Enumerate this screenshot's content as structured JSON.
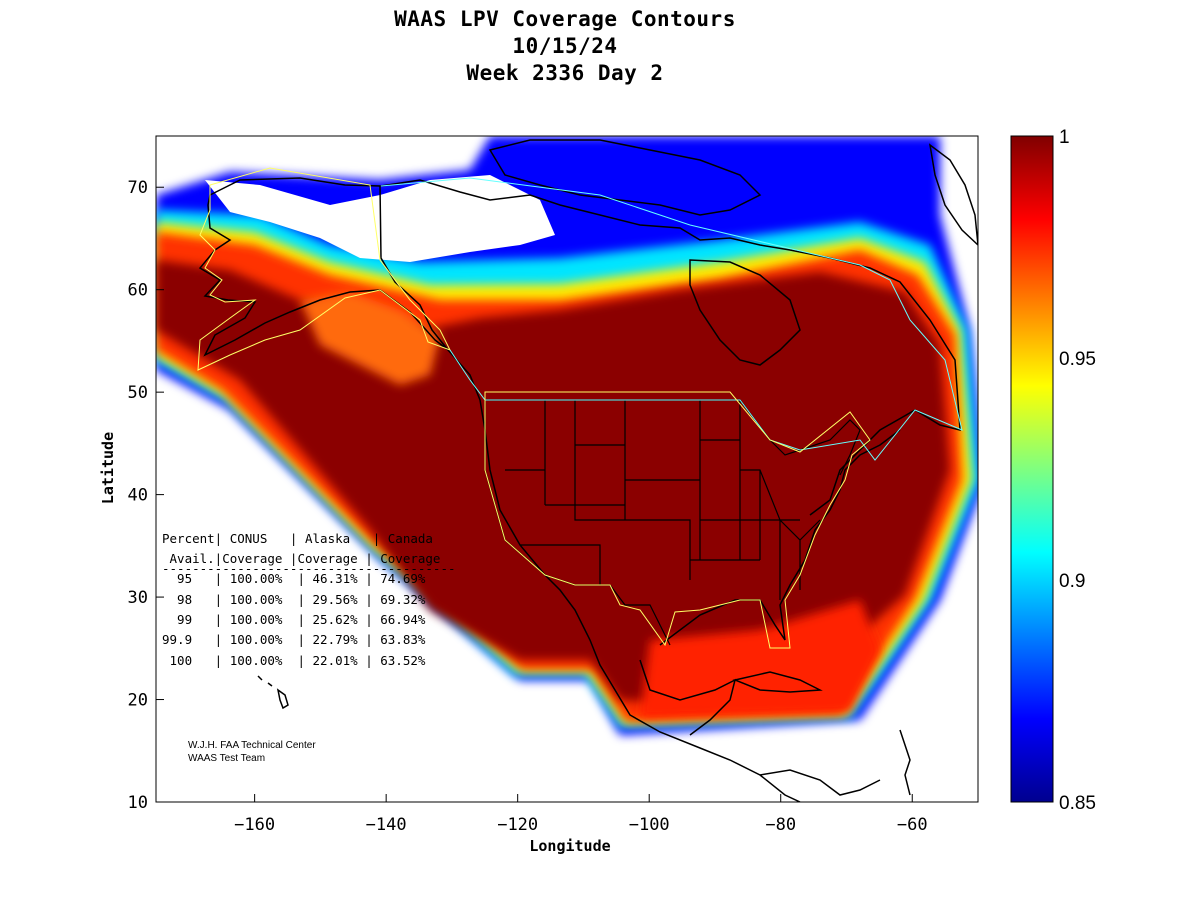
{
  "title": {
    "line1": "WAAS LPV Coverage Contours",
    "line2": "10/15/24",
    "line3": "Week 2336 Day 2"
  },
  "axes": {
    "xlabel": "Longitude",
    "ylabel": "Latitude",
    "xlim": [
      -175,
      -50
    ],
    "ylim": [
      10,
      75
    ],
    "xticks": [
      -160,
      -140,
      -120,
      -100,
      -80,
      -60
    ],
    "yticks": [
      10,
      20,
      30,
      40,
      50,
      60,
      70
    ]
  },
  "colorbar": {
    "min": 0.85,
    "max": 1,
    "ticks": [
      "1",
      "0.95",
      "0.9",
      "0.85"
    ],
    "colormap": "jet"
  },
  "stats_table": {
    "header1": "Percent| CONUS   | Alaska   | Canada",
    "header2": " Avail.|Coverage |Coverage | Coverage",
    "rule": "---------------------------------------",
    "rows": [
      "  95   | 100.00%  | 46.31% | 74.69%",
      "  98   | 100.00%  | 29.56% | 69.32%",
      "  99   | 100.00%  | 25.62% | 66.94%",
      "99.9   | 100.00%  | 22.79% | 63.83%",
      " 100   | 100.00%  | 22.01% | 63.52%"
    ]
  },
  "credit": {
    "line1": "W.J.H. FAA Technical Center",
    "line2": "WAAS Test Team"
  },
  "chart_data": {
    "type": "heatmap",
    "xlabel": "Longitude",
    "ylabel": "Latitude",
    "xlim": [
      -175,
      -50
    ],
    "ylim": [
      10,
      75
    ],
    "colorbar_range": [
      0.85,
      1
    ],
    "coverage_percent": {
      "availability": [
        "95",
        "98",
        "99",
        "99.9",
        "100"
      ],
      "CONUS": [
        100.0,
        100.0,
        100.0,
        100.0,
        100.0
      ],
      "Alaska": [
        46.31,
        29.56,
        25.62,
        22.79,
        22.01
      ],
      "Canada": [
        74.69,
        69.32,
        66.94,
        63.83,
        63.52
      ]
    }
  }
}
